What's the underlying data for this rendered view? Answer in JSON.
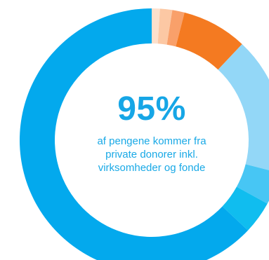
{
  "chart_data": {
    "type": "pie",
    "style": "donut",
    "start_angle_deg": 0,
    "direction": "clockwise",
    "slices": [
      {
        "value": 1.0,
        "color": "#fde0cc"
      },
      {
        "value": 1.5,
        "color": "#fcc8a4"
      },
      {
        "value": 1.5,
        "color": "#f9a06a"
      },
      {
        "value": 8.0,
        "color": "#f47a21"
      },
      {
        "value": 17.0,
        "color": "#93d7f7"
      },
      {
        "value": 4.0,
        "color": "#47c6f4"
      },
      {
        "value": 4.0,
        "color": "#10bdef"
      },
      {
        "value": 63.0,
        "color": "#03a9ed"
      }
    ]
  },
  "center": {
    "value": "95%",
    "caption_lines": [
      "af pengene kommer fra",
      "private donorer inkl.",
      "virksomheder og fonde"
    ]
  },
  "colors": {
    "center_text": "#16a6e6",
    "background": "#ffffff"
  }
}
